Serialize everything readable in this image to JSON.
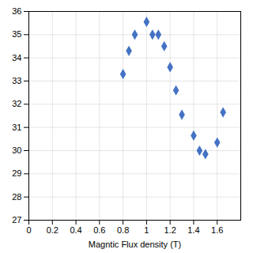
{
  "chart_data": {
    "type": "scatter",
    "x": [
      0.8,
      0.85,
      0.9,
      1.0,
      1.05,
      1.1,
      1.15,
      1.2,
      1.25,
      1.3,
      1.4,
      1.45,
      1.5,
      1.6,
      1.65
    ],
    "values": [
      33.3,
      34.3,
      35.0,
      35.55,
      35.0,
      35.0,
      34.5,
      33.6,
      32.6,
      31.55,
      30.65,
      30.0,
      29.85,
      30.35,
      31.65
    ],
    "color": "#4472C4",
    "marker": "diamond",
    "xlabel": "Magntic Flux density (T)",
    "xlim": [
      0,
      1.8
    ],
    "ylim": [
      27,
      36
    ],
    "xticks": [
      0,
      0.2,
      0.4,
      0.6,
      0.8,
      1,
      1.2,
      1.4,
      1.6
    ],
    "yticks": [
      27,
      28,
      29,
      30,
      31,
      32,
      33,
      34,
      35,
      36
    ],
    "grid": true
  }
}
